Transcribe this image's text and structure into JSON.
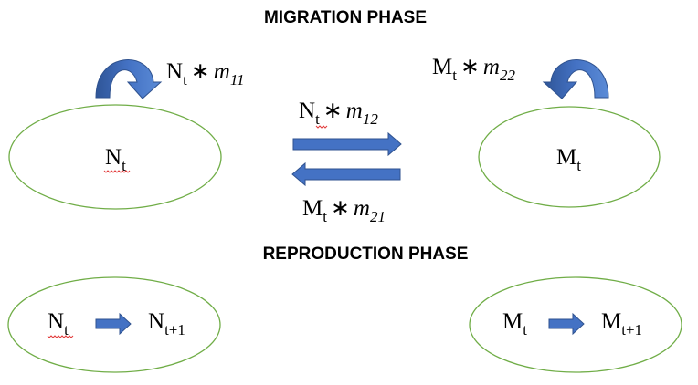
{
  "headings": {
    "migration": "MIGRATION PHASE",
    "reproduction": "REPRODUCTION PHASE"
  },
  "migration": {
    "left_node": {
      "base": "N",
      "sub": "t"
    },
    "right_node": {
      "base": "M",
      "sub": "t"
    },
    "left_self_flow": {
      "base": "N",
      "sub": "t",
      "op": "∗",
      "rate": "m",
      "rate_sub": "11"
    },
    "right_self_flow": {
      "base": "M",
      "sub": "t",
      "op": "∗",
      "rate": "m",
      "rate_sub": "22"
    },
    "flow_left_to_right": {
      "base": "N",
      "sub": "t",
      "op": "∗",
      "rate": "m",
      "rate_sub": "12"
    },
    "flow_right_to_left": {
      "base": "M",
      "sub": "t",
      "op": "∗",
      "rate": "m",
      "rate_sub": "21"
    }
  },
  "reproduction": {
    "left": {
      "from_base": "N",
      "from_sub": "t",
      "to_base": "N",
      "to_sub": "t+1"
    },
    "right": {
      "from_base": "M",
      "from_sub": "t",
      "to_base": "M",
      "to_sub": "t+1"
    }
  },
  "colors": {
    "ellipse_stroke": "#70ad47",
    "arrow_fill": "#4472c4",
    "arrow_stroke": "#2f528f",
    "spell_check": "#e23b3b"
  }
}
